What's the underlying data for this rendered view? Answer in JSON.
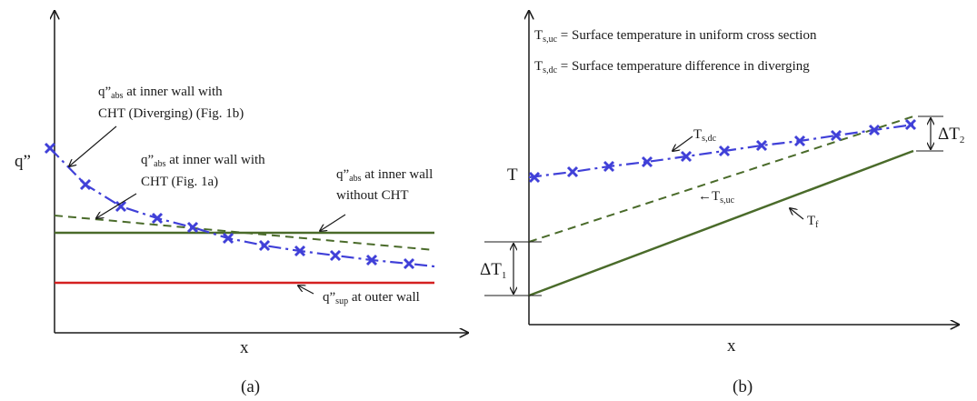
{
  "panel_a": {
    "y_axis_label": "q”",
    "x_axis_label": "x",
    "caption": "(a)",
    "ann_diverging": {
      "line1_pre": "q”",
      "line1_sub": "abs",
      "line1_post": " at inner wall with",
      "line2": "CHT (Diverging) (Fig. 1b)"
    },
    "ann_uniform": {
      "line1_pre": "q”",
      "line1_sub": "abs",
      "line1_post": " at inner wall with",
      "line2": "CHT (Fig. 1a)"
    },
    "ann_without": {
      "line1_pre": "q”",
      "line1_sub": "abs",
      "line1_post": " at inner wall",
      "line2": "without CHT"
    },
    "ann_sup": {
      "pre": "q”",
      "sub": "sup",
      "post": " at outer wall"
    }
  },
  "panel_b": {
    "y_axis_label": "T",
    "x_axis_label": "x",
    "caption": "(b)",
    "legend_uc": {
      "sym": "T",
      "sub": "s,uc",
      "text": " = Surface temperature in uniform cross section"
    },
    "legend_dc": {
      "sym": "T",
      "sub": "s,dc",
      "text": " = Surface temperature difference in diverging"
    },
    "lbl_dc": {
      "sym": "T",
      "sub": "s,dc"
    },
    "lbl_uc": {
      "sym": "←T",
      "sub": "s,uc"
    },
    "lbl_f": {
      "sym": "T",
      "sub": "f"
    },
    "delta1": {
      "sym": "ΔT",
      "sub": "1"
    },
    "delta2": {
      "sym": "ΔT",
      "sub": "2"
    }
  },
  "colors": {
    "axis": "#1a1a1a",
    "green": "#4a6b2a",
    "red": "#d42020",
    "blue": "#4040d8",
    "dashed": "#4a6b2a"
  }
}
